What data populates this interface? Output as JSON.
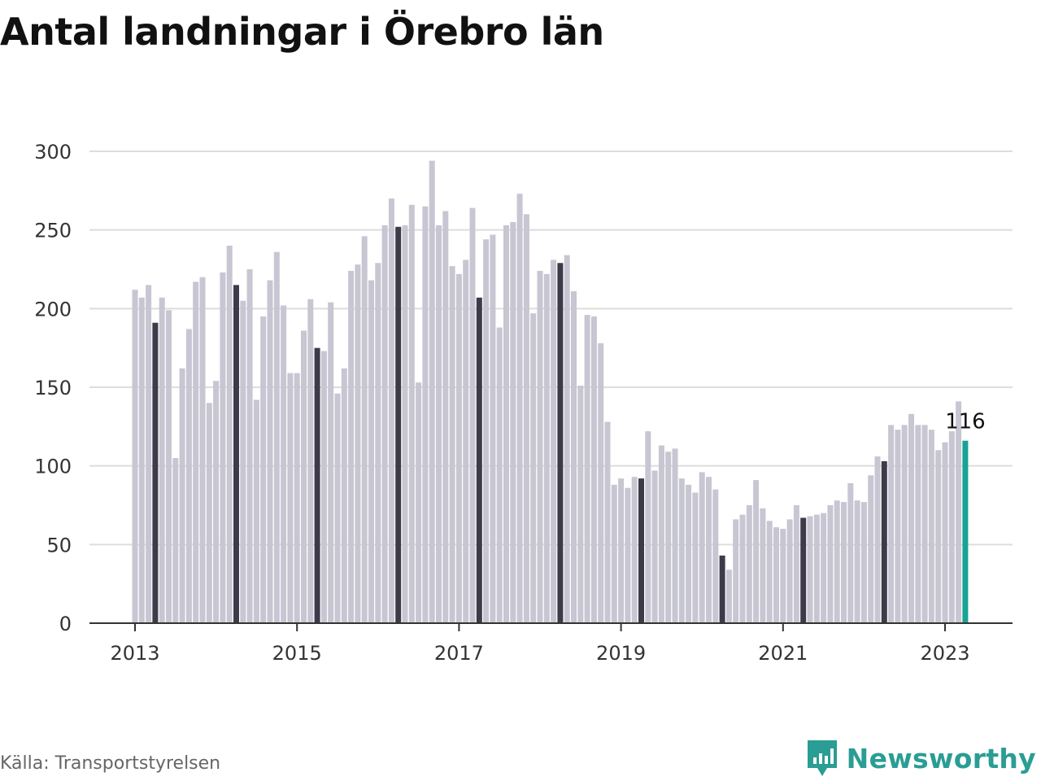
{
  "title": "Antal landningar i Örebro län",
  "source": "Källa: Transportstyrelsen",
  "brand": {
    "name": "Newsworthy",
    "icon": "newsworthy-logo-icon",
    "color": "#2a9d94"
  },
  "colors": {
    "bar": "#c7c6d2",
    "highlight": "#3d3b4a",
    "latest": "#16a394",
    "grid": "#dddddd",
    "axis": "#333333"
  },
  "chart_data": {
    "type": "bar",
    "title": "Antal landningar i Örebro län",
    "xlabel": "",
    "ylabel": "",
    "ylim": [
      0,
      300
    ],
    "yticks": [
      0,
      50,
      100,
      150,
      200,
      250,
      300
    ],
    "xticks": [
      "2013",
      "2015",
      "2017",
      "2019",
      "2021",
      "2023"
    ],
    "grid": true,
    "legend": "none",
    "start": "2013-01",
    "frequency": "monthly",
    "highlight_month": "April",
    "annotation": {
      "label": "116",
      "category": "2023-04"
    },
    "categories": [
      "2013-01",
      "2013-02",
      "2013-03",
      "2013-04",
      "2013-05",
      "2013-06",
      "2013-07",
      "2013-08",
      "2013-09",
      "2013-10",
      "2013-11",
      "2013-12",
      "2014-01",
      "2014-02",
      "2014-03",
      "2014-04",
      "2014-05",
      "2014-06",
      "2014-07",
      "2014-08",
      "2014-09",
      "2014-10",
      "2014-11",
      "2014-12",
      "2015-01",
      "2015-02",
      "2015-03",
      "2015-04",
      "2015-05",
      "2015-06",
      "2015-07",
      "2015-08",
      "2015-09",
      "2015-10",
      "2015-11",
      "2015-12",
      "2016-01",
      "2016-02",
      "2016-03",
      "2016-04",
      "2016-05",
      "2016-06",
      "2016-07",
      "2016-08",
      "2016-09",
      "2016-10",
      "2016-11",
      "2016-12",
      "2017-01",
      "2017-02",
      "2017-03",
      "2017-04",
      "2017-05",
      "2017-06",
      "2017-07",
      "2017-08",
      "2017-09",
      "2017-10",
      "2017-11",
      "2017-12",
      "2018-01",
      "2018-02",
      "2018-03",
      "2018-04",
      "2018-05",
      "2018-06",
      "2018-07",
      "2018-08",
      "2018-09",
      "2018-10",
      "2018-11",
      "2018-12",
      "2019-01",
      "2019-02",
      "2019-03",
      "2019-04",
      "2019-05",
      "2019-06",
      "2019-07",
      "2019-08",
      "2019-09",
      "2019-10",
      "2019-11",
      "2019-12",
      "2020-01",
      "2020-02",
      "2020-03",
      "2020-04",
      "2020-05",
      "2020-06",
      "2020-07",
      "2020-08",
      "2020-09",
      "2020-10",
      "2020-11",
      "2020-12",
      "2021-01",
      "2021-02",
      "2021-03",
      "2021-04",
      "2021-05",
      "2021-06",
      "2021-07",
      "2021-08",
      "2021-09",
      "2021-10",
      "2021-11",
      "2021-12",
      "2022-01",
      "2022-02",
      "2022-03",
      "2022-04",
      "2022-05",
      "2022-06",
      "2022-07",
      "2022-08",
      "2022-09",
      "2022-10",
      "2022-11",
      "2022-12",
      "2023-01",
      "2023-02",
      "2023-03",
      "2023-04"
    ],
    "values": [
      212,
      207,
      215,
      191,
      207,
      199,
      105,
      162,
      187,
      217,
      220,
      140,
      154,
      223,
      240,
      215,
      205,
      225,
      142,
      195,
      218,
      236,
      202,
      159,
      159,
      186,
      206,
      175,
      173,
      204,
      146,
      162,
      224,
      228,
      246,
      218,
      229,
      253,
      270,
      252,
      253,
      266,
      153,
      265,
      294,
      253,
      262,
      227,
      222,
      231,
      264,
      207,
      244,
      247,
      188,
      253,
      255,
      273,
      260,
      197,
      224,
      222,
      231,
      229,
      234,
      211,
      151,
      196,
      195,
      178,
      128,
      88,
      92,
      86,
      93,
      92,
      122,
      97,
      113,
      109,
      111,
      92,
      88,
      83,
      96,
      93,
      85,
      43,
      34,
      66,
      69,
      75,
      91,
      73,
      65,
      61,
      60,
      66,
      75,
      67,
      68,
      69,
      70,
      75,
      78,
      77,
      89,
      78,
      77,
      94,
      106,
      103,
      126,
      123,
      126,
      133,
      126,
      126,
      123,
      110,
      115,
      122,
      141,
      116
    ]
  }
}
